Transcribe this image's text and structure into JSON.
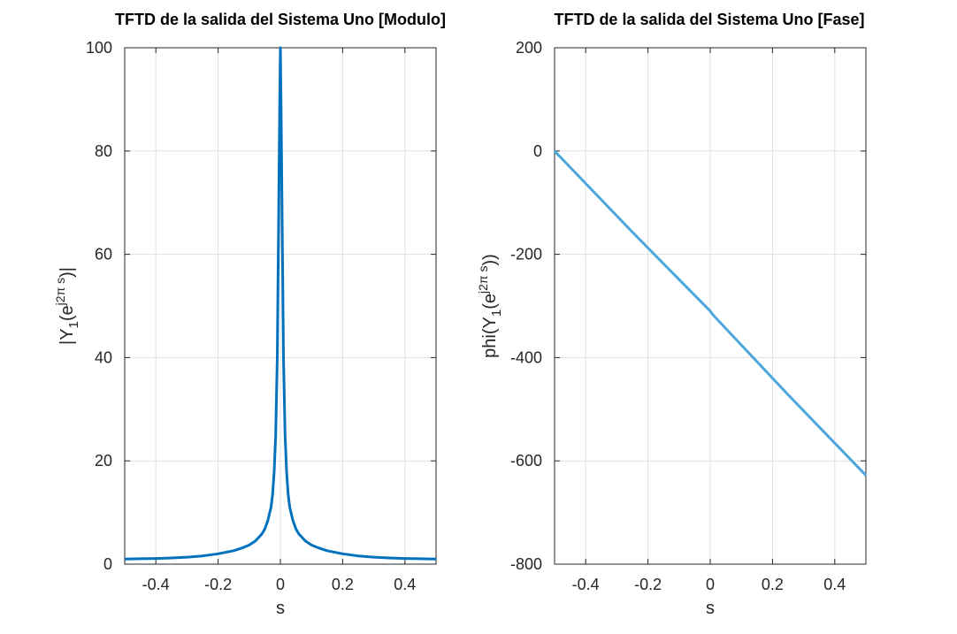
{
  "chart_data": [
    {
      "type": "line",
      "title": "TFTD de la salida del Sistema Uno [Modulo]",
      "xlabel": "s",
      "ylabel": "|Y1(ej2π s)|",
      "ylabel_parts": {
        "pre": "|Y",
        "sub": "1",
        "mid": "(e",
        "sup": "j2π s",
        "post": ")|"
      },
      "xlim": [
        -0.5,
        0.5
      ],
      "ylim": [
        0,
        100
      ],
      "xticks": [
        -0.4,
        -0.2,
        0,
        0.2,
        0.4
      ],
      "xtick_labels": [
        "-0.4",
        "-0.2",
        "0",
        "0.2",
        "0.4"
      ],
      "yticks": [
        0,
        20,
        40,
        60,
        80,
        100
      ],
      "ytick_labels": [
        "0",
        "20",
        "40",
        "60",
        "80",
        "100"
      ],
      "grid": true,
      "color": "#0072BD",
      "series": [
        {
          "x": [
            -0.5,
            -0.45,
            -0.4,
            -0.35,
            -0.3,
            -0.25,
            -0.2,
            -0.15,
            -0.12,
            -0.1,
            -0.08,
            -0.06,
            -0.05,
            -0.04,
            -0.03,
            -0.025,
            -0.02,
            -0.015,
            -0.01,
            -0.005,
            -0.002,
            0,
            0.002,
            0.005,
            0.01,
            0.015,
            0.02,
            0.025,
            0.03,
            0.04,
            0.05,
            0.06,
            0.08,
            0.1,
            0.12,
            0.15,
            0.2,
            0.25,
            0.3,
            0.35,
            0.4,
            0.45,
            0.5
          ],
          "y": [
            1.0,
            1.05,
            1.1,
            1.2,
            1.35,
            1.6,
            2.0,
            2.6,
            3.2,
            3.7,
            4.5,
            5.8,
            6.8,
            8.5,
            11,
            13.5,
            18,
            25,
            40,
            70,
            90,
            100,
            90,
            70,
            40,
            25,
            18,
            13.5,
            11,
            8.5,
            6.8,
            5.8,
            4.5,
            3.7,
            3.2,
            2.6,
            2.0,
            1.6,
            1.35,
            1.2,
            1.1,
            1.05,
            1.0
          ]
        }
      ]
    },
    {
      "type": "line",
      "title": "TFTD de la salida del Sistema Uno [Fase]",
      "xlabel": "s",
      "ylabel": "phi(Y1(ej2π s))",
      "ylabel_parts": {
        "pre": "phi(Y",
        "sub": "1",
        "mid": "(e",
        "sup": "j2π s",
        "post": "))"
      },
      "xlim": [
        -0.5,
        0.5
      ],
      "ylim": [
        -800,
        200
      ],
      "xticks": [
        -0.4,
        -0.2,
        0,
        0.2,
        0.4
      ],
      "xtick_labels": [
        "-0.4",
        "-0.2",
        "0",
        "0.2",
        "0.4"
      ],
      "yticks": [
        -800,
        -600,
        -400,
        -200,
        0,
        200
      ],
      "ytick_labels": [
        "-800",
        "-600",
        "-400",
        "-200",
        "0",
        "200"
      ],
      "grid": true,
      "color": "#4DA6DB",
      "series": [
        {
          "x": [
            -0.5,
            -0.25,
            0,
            0.01,
            0.25,
            0.5
          ],
          "y": [
            0,
            -157,
            -310,
            -318,
            -472,
            -628
          ]
        }
      ]
    }
  ]
}
